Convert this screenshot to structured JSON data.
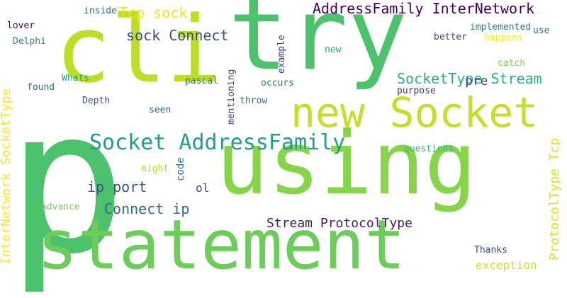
{
  "words": [
    {
      "text": "p",
      "color": "#4cc26c",
      "vertical": false
    },
    {
      "text": "using",
      "color": "#86d549",
      "vertical": false
    },
    {
      "text": "try",
      "color": "#4cc26c",
      "vertical": false
    },
    {
      "text": "statement",
      "color": "#6ccd5a",
      "vertical": false
    },
    {
      "text": "cli",
      "color": "#bdde26",
      "vertical": false
    },
    {
      "text": "new Socket",
      "color": "#c3df26",
      "vertical": false
    },
    {
      "text": "Socket AddressFamily",
      "color": "#1f9f88",
      "vertical": false
    },
    {
      "text": "AddressFamily InterNetwork",
      "color": "#440154",
      "vertical": false
    },
    {
      "text": "SocketType Stream",
      "color": "#2ab07f",
      "vertical": false
    },
    {
      "text": "InterNetwork SocketType",
      "color": "#fde725",
      "vertical": true
    },
    {
      "text": "ProtocolType Tcp",
      "color": "#dfe318",
      "vertical": true
    },
    {
      "text": "Stream ProtocolType",
      "color": "#481a6c",
      "vertical": false
    },
    {
      "text": "Tcp sock",
      "color": "#f1e51d",
      "vertical": false
    },
    {
      "text": "sock Connect",
      "color": "#3e4a89",
      "vertical": false
    },
    {
      "text": "Connect ip",
      "color": "#31688e",
      "vertical": false
    },
    {
      "text": "ip port",
      "color": "#3b528b",
      "vertical": false
    },
    {
      "text": "pre",
      "color": "#3b528b",
      "vertical": false
    },
    {
      "text": "exception",
      "color": "#d2e21b",
      "vertical": false
    },
    {
      "text": "inside",
      "color": "#2c728e",
      "vertical": false
    },
    {
      "text": "lover",
      "color": "#440154",
      "vertical": false
    },
    {
      "text": "Delphi",
      "color": "#228d8d",
      "vertical": false
    },
    {
      "text": "found",
      "color": "#2a788e",
      "vertical": false
    },
    {
      "text": "Whats",
      "color": "#21a685",
      "vertical": false
    },
    {
      "text": "Depth",
      "color": "#3b528b",
      "vertical": false
    },
    {
      "text": "pascal",
      "color": "#2c728e",
      "vertical": false
    },
    {
      "text": "seen",
      "color": "#31688e",
      "vertical": false
    },
    {
      "text": "might",
      "color": "#b5de2b",
      "vertical": false
    },
    {
      "text": "advance",
      "color": "#7ad151",
      "vertical": false
    },
    {
      "text": "code",
      "color": "#2e6e8e",
      "vertical": true
    },
    {
      "text": "ol",
      "color": "#3e4a89",
      "vertical": false
    },
    {
      "text": "mentioning",
      "color": "#433e85",
      "vertical": true
    },
    {
      "text": "example",
      "color": "#46337e",
      "vertical": true
    },
    {
      "text": "new",
      "color": "#22a884",
      "vertical": false
    },
    {
      "text": "occurs",
      "color": "#2a788e",
      "vertical": false
    },
    {
      "text": "throw",
      "color": "#2c728e",
      "vertical": false
    },
    {
      "text": "implemented",
      "color": "#26828e",
      "vertical": false
    },
    {
      "text": "use",
      "color": "#2c728e",
      "vertical": false
    },
    {
      "text": "better",
      "color": "#3e4989",
      "vertical": false
    },
    {
      "text": "happens",
      "color": "#fde725",
      "vertical": false
    },
    {
      "text": "catch",
      "color": "#7fd34e",
      "vertical": false
    },
    {
      "text": "purpose",
      "color": "#46327e",
      "vertical": false
    },
    {
      "text": "questions",
      "color": "#35b779",
      "vertical": false
    },
    {
      "text": "Thanks",
      "color": "#3e4a89",
      "vertical": false
    }
  ]
}
